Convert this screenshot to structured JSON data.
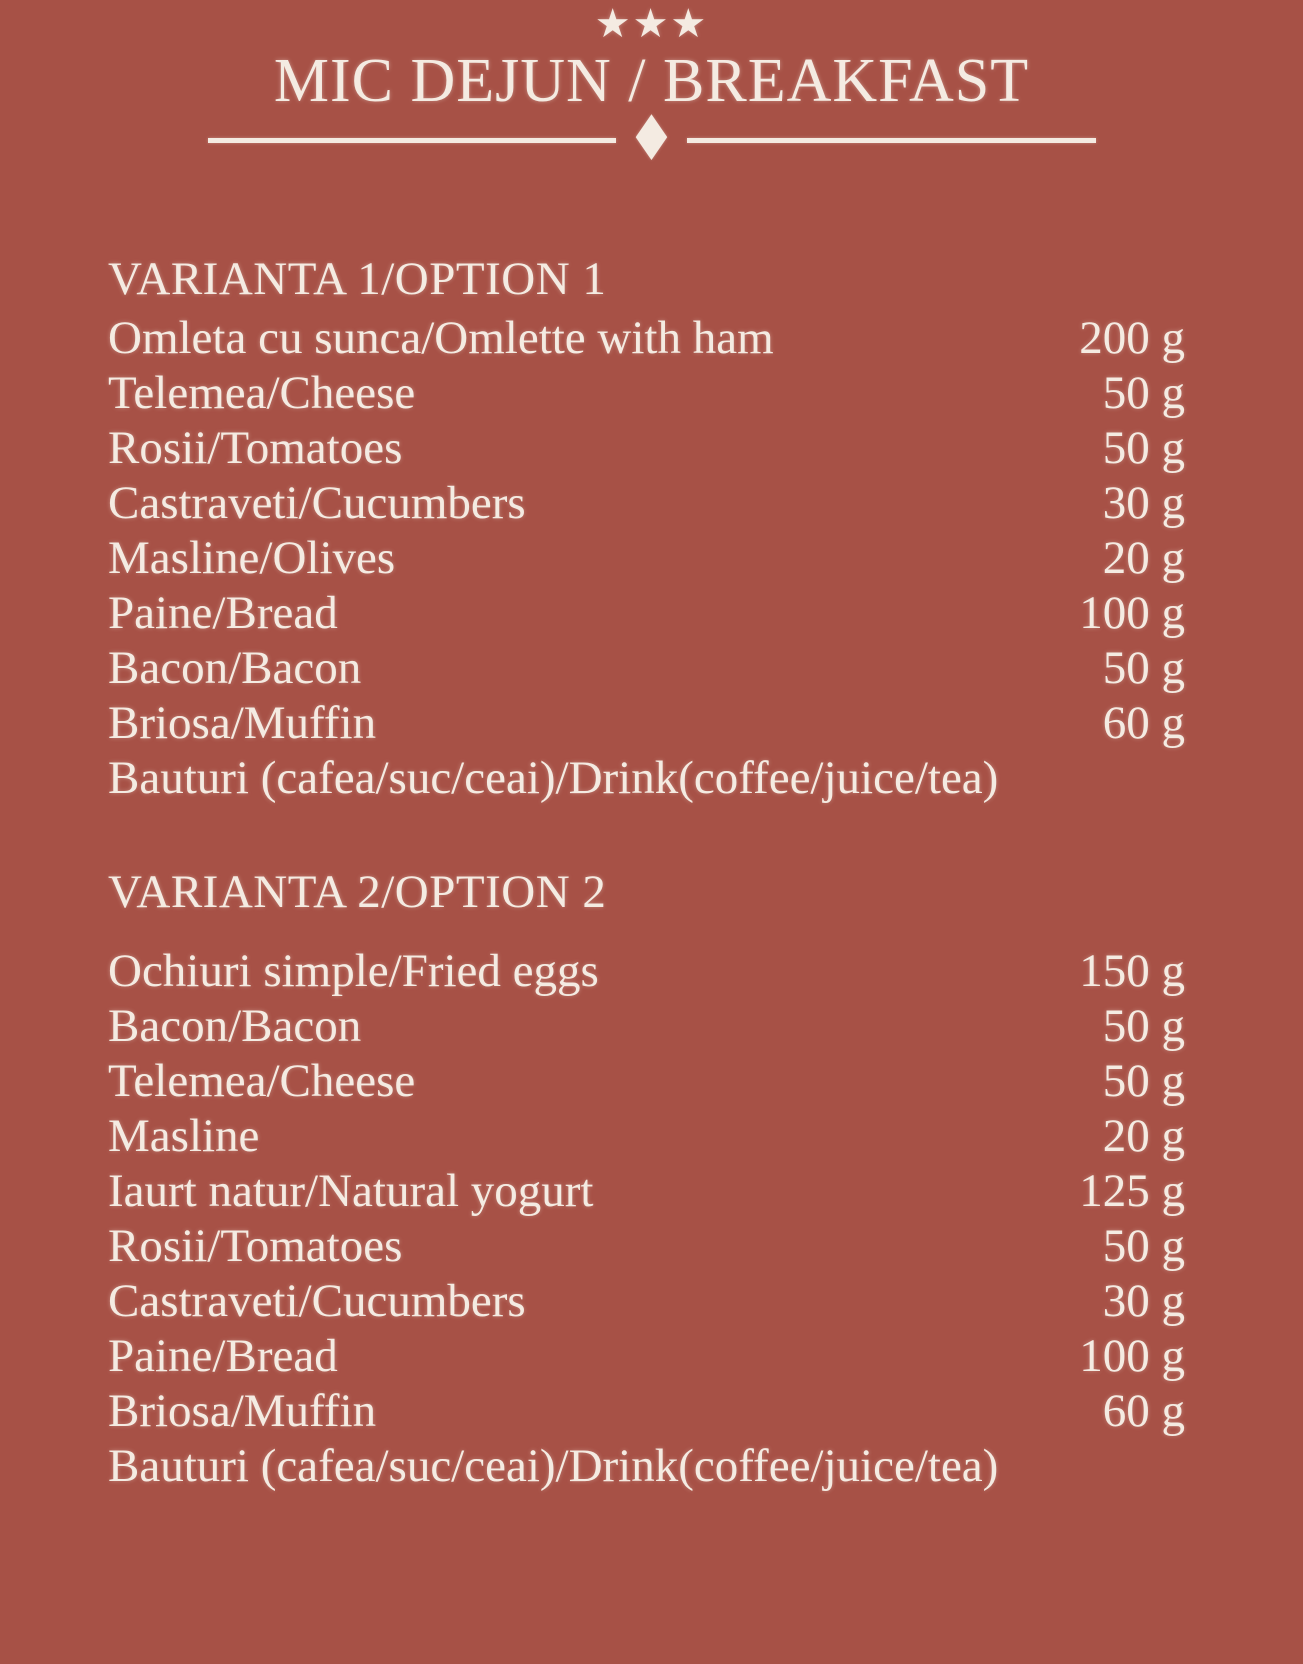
{
  "colors": {
    "background": "#a75146",
    "text": "#f4ebe2"
  },
  "header": {
    "stars": "★★★",
    "title": "MIC DEJUN / BREAKFAST",
    "diamond": "♦"
  },
  "sections": [
    {
      "heading": "VARIANTA 1/OPTION 1",
      "items": [
        {
          "name": "Omleta cu sunca/Omlette with ham",
          "weight": "200 g"
        },
        {
          "name": "Telemea/Cheese",
          "weight": "50 g"
        },
        {
          "name": "Rosii/Tomatoes",
          "weight": "50 g"
        },
        {
          "name": "Castraveti/Cucumbers",
          "weight": "30 g"
        },
        {
          "name": "Masline/Olives",
          "weight": "20 g"
        },
        {
          "name": "Paine/Bread",
          "weight": "100 g"
        },
        {
          "name": "Bacon/Bacon",
          "weight": "50 g"
        },
        {
          "name": "Briosa/Muffin",
          "weight": "60 g"
        },
        {
          "name": "Bauturi (cafea/suc/ceai)/Drink(coffee/juice/tea)",
          "weight": ""
        }
      ]
    },
    {
      "heading": "VARIANTA 2/OPTION 2",
      "items": [
        {
          "name": "Ochiuri simple/Fried eggs",
          "weight": "150 g"
        },
        {
          "name": "Bacon/Bacon",
          "weight": "50 g"
        },
        {
          "name": "Telemea/Cheese",
          "weight": "50 g"
        },
        {
          "name": "Masline",
          "weight": "20 g"
        },
        {
          "name": "Iaurt natur/Natural yogurt",
          "weight": "125 g"
        },
        {
          "name": "Rosii/Tomatoes",
          "weight": "50 g"
        },
        {
          "name": "Castraveti/Cucumbers",
          "weight": "30 g"
        },
        {
          "name": "Paine/Bread",
          "weight": "100 g"
        },
        {
          "name": "Briosa/Muffin",
          "weight": "60 g"
        },
        {
          "name": "Bauturi (cafea/suc/ceai)/Drink(coffee/juice/tea)",
          "weight": ""
        }
      ]
    }
  ]
}
